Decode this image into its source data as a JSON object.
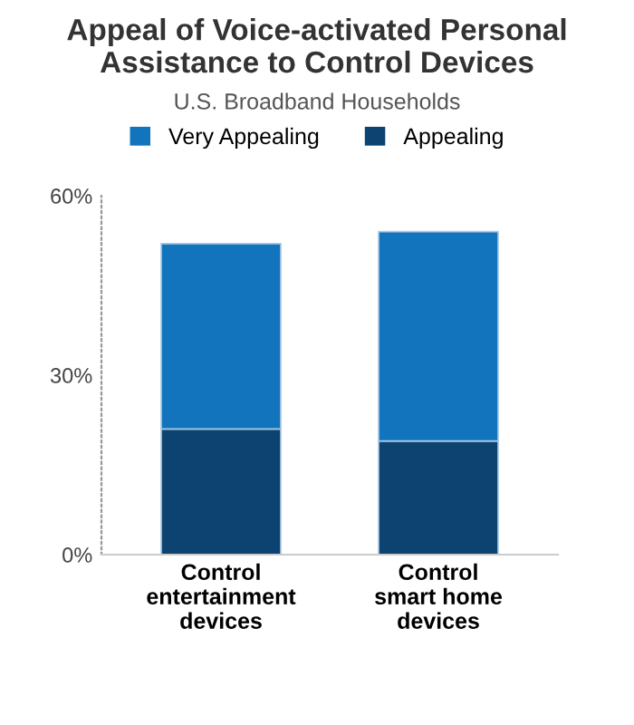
{
  "chart_data": {
    "type": "bar",
    "stacked": true,
    "title": "Appeal of Voice-activated Personal Assistance to Control Devices",
    "subtitle": "U.S. Broadband Households",
    "categories": [
      "Control\nentertainment\ndevices",
      "Control\nsmart home\ndevices"
    ],
    "series": [
      {
        "name": "Appealing",
        "color": "#0d4370",
        "values": [
          21,
          19
        ]
      },
      {
        "name": "Very Appealing",
        "color": "#1174bd",
        "values": [
          31,
          35
        ]
      }
    ],
    "ylim": [
      0,
      60
    ],
    "yticks": [
      {
        "value": 0,
        "label": "0%"
      },
      {
        "value": 30,
        "label": "30%"
      },
      {
        "value": 60,
        "label": "60%"
      }
    ],
    "grid": false,
    "legend": "top"
  }
}
